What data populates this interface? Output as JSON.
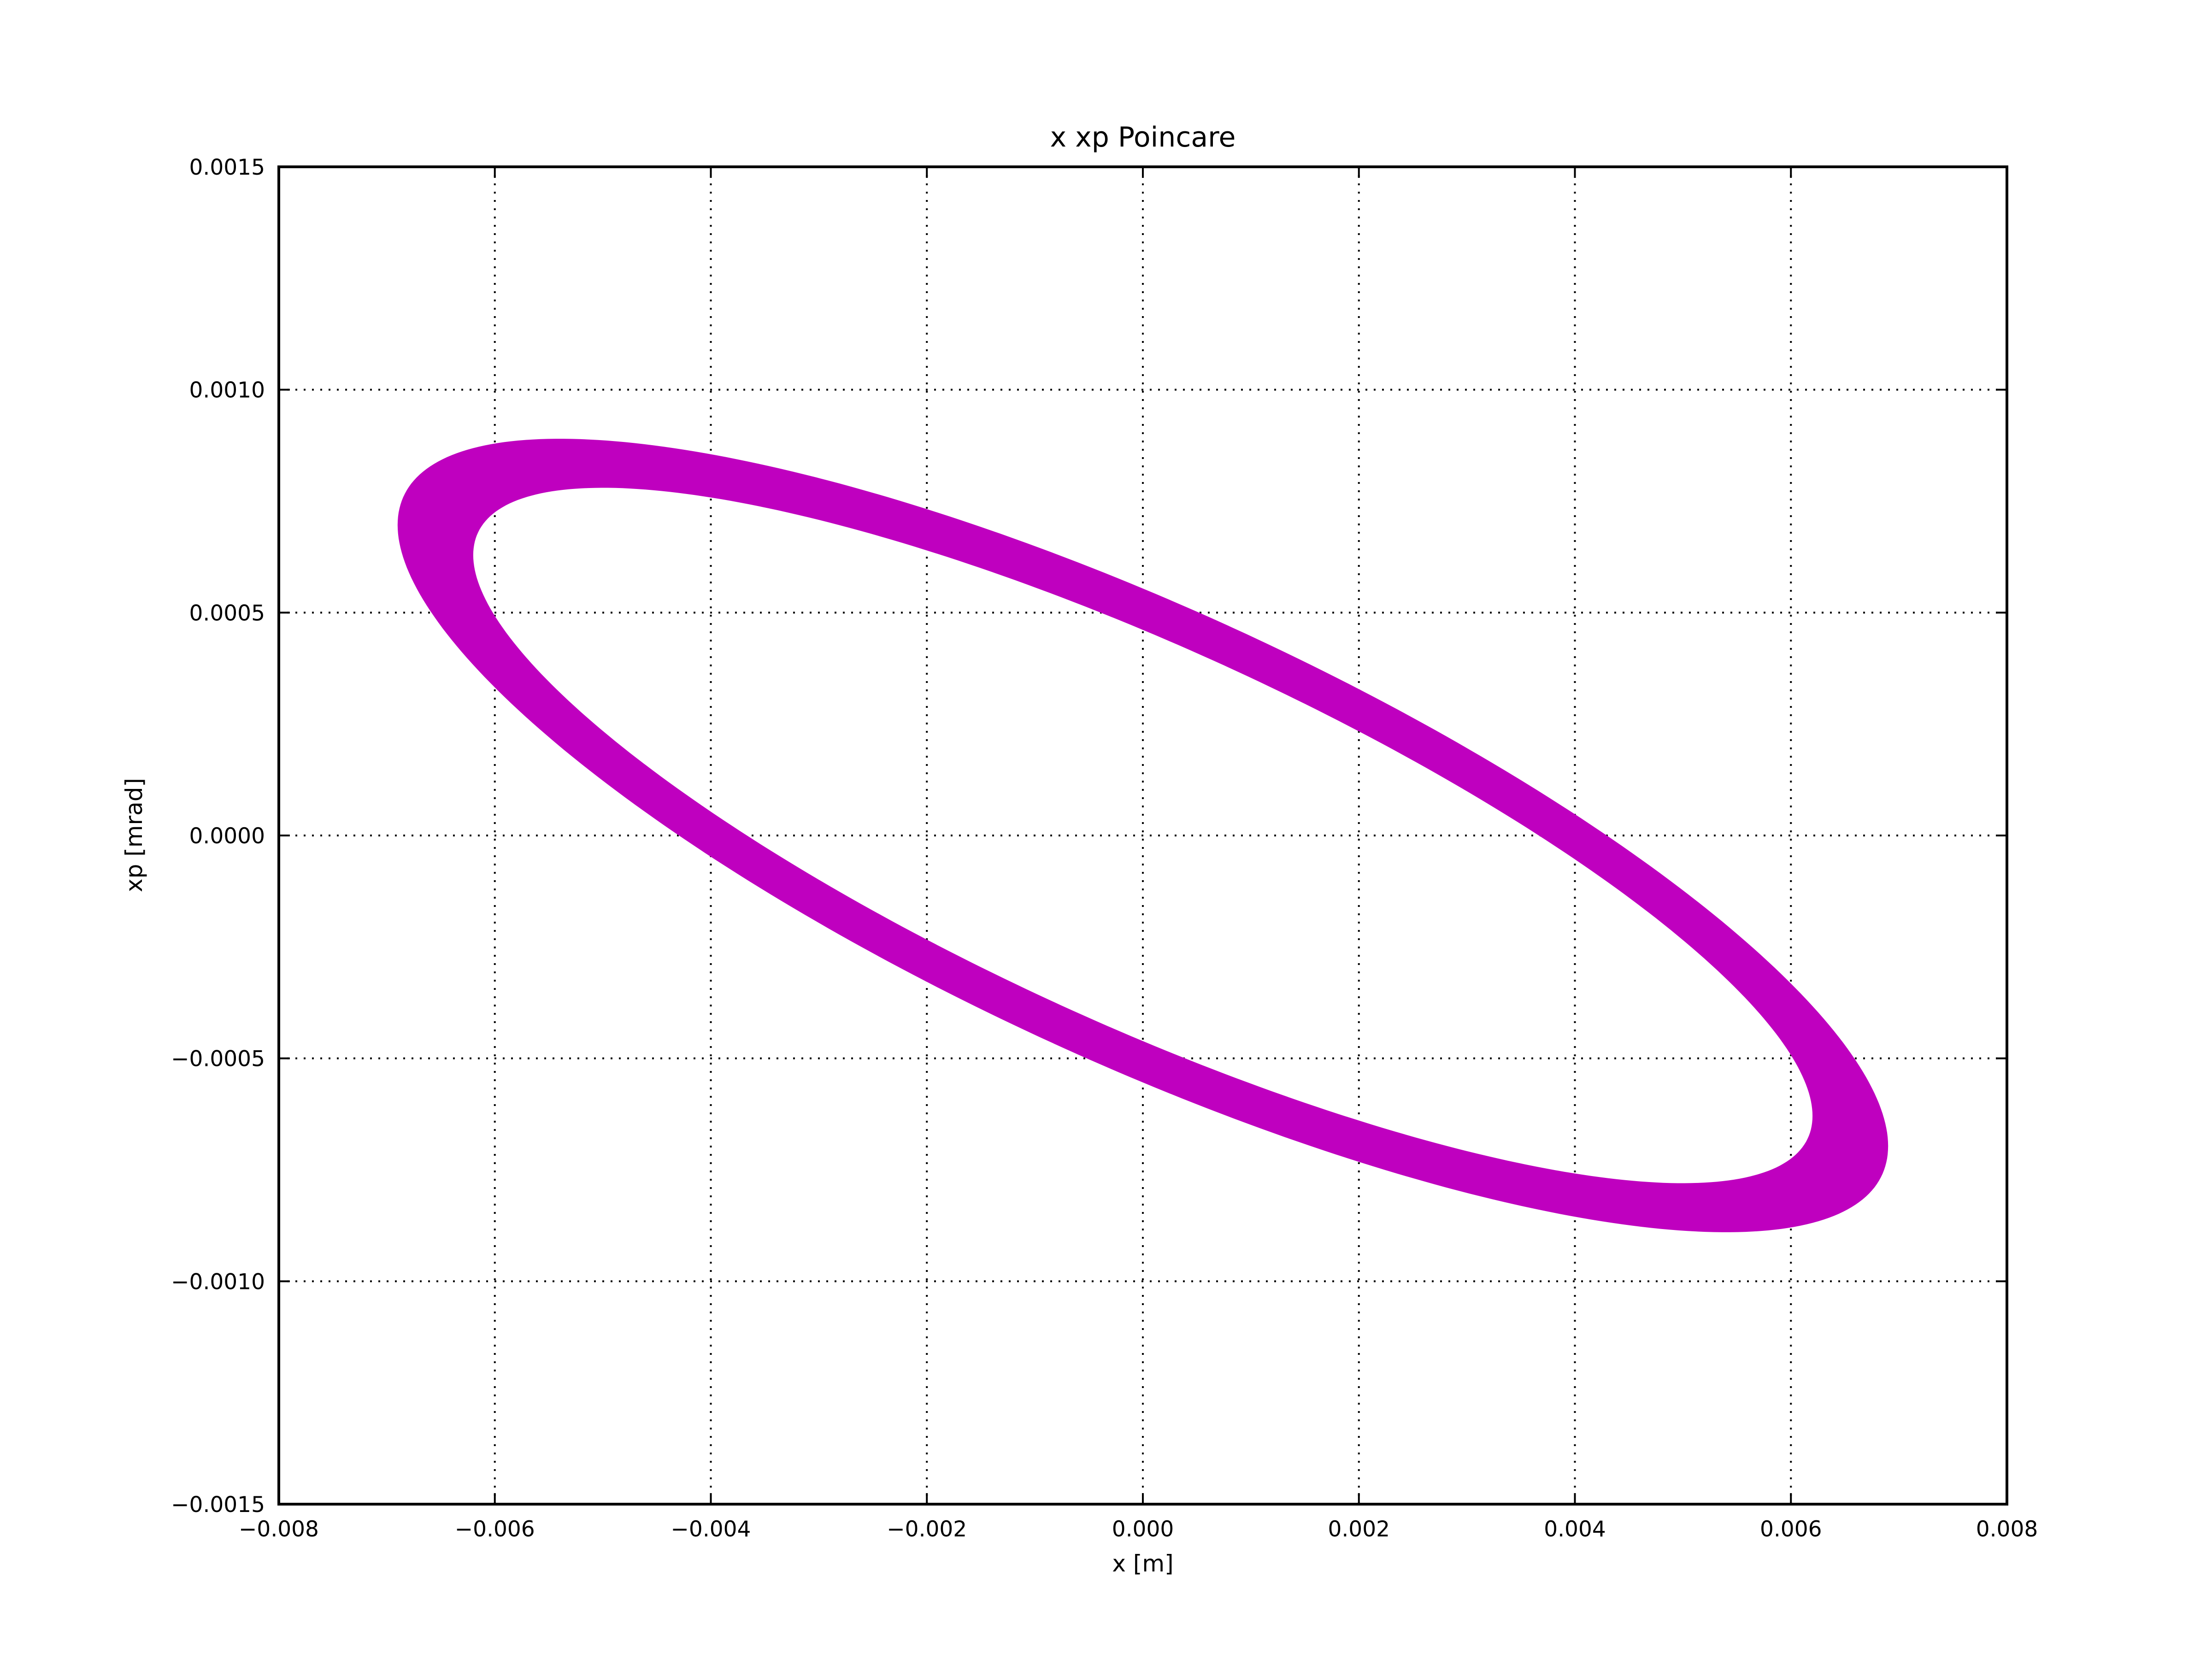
{
  "chart_data": {
    "type": "scatter",
    "title": "x xp Poincare",
    "xlabel": "x [m]",
    "ylabel": "xp [mrad]",
    "xlim": [
      -0.008,
      0.008
    ],
    "ylim": [
      -0.0015,
      0.0015
    ],
    "x_ticks": [
      "−0.008",
      "−0.006",
      "−0.004",
      "−0.002",
      "0.000",
      "0.002",
      "0.004",
      "0.006",
      "0.008"
    ],
    "y_ticks": [
      "−0.0015",
      "−0.0010",
      "−0.0005",
      "0.0000",
      "0.0005",
      "0.0010",
      "0.0015"
    ],
    "x_tick_values": [
      -0.008,
      -0.006,
      -0.004,
      -0.002,
      0,
      0.002,
      0.004,
      0.006,
      0.008
    ],
    "y_tick_values": [
      -0.0015,
      -0.001,
      -0.0005,
      0,
      0.0005,
      0.001,
      0.0015
    ],
    "grid": true,
    "grid_style": "dotted",
    "series": [
      {
        "color": "#bf00bf",
        "shape": "elliptical ring (phase-space Poincare section)",
        "center": [
          0.0,
          0.0
        ],
        "outer_extent": {
          "x_max": 0.0069,
          "x_min": -0.0069,
          "xp_max": 0.00089,
          "xp_min": -0.00089
        },
        "inner_extent": {
          "x_max": 0.0062,
          "x_min": -0.0062,
          "xp_max": 0.00078,
          "xp_min": -0.00078
        },
        "x_at_xp_max_outer": -0.0054,
        "x_at_xp_max_inner": -0.005,
        "xp_intercept_outer": 0.00053,
        "xp_intercept_inner": 0.00047
      }
    ]
  }
}
